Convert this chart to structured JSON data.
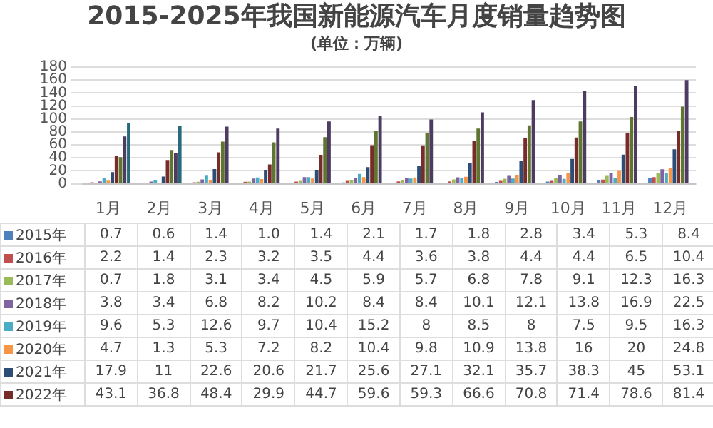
{
  "chart_data": {
    "type": "bar",
    "title": "2015-2025年我国新能源汽车月度销量趋势图",
    "subtitle": "(单位：万辆)",
    "categories": [
      "1月",
      "2月",
      "3月",
      "4月",
      "5月",
      "6月",
      "7月",
      "8月",
      "9月",
      "10月",
      "11月",
      "12月"
    ],
    "legend": "bottom",
    "ylim": [
      0,
      180
    ],
    "yticks": [
      0,
      20,
      40,
      60,
      80,
      100,
      120,
      140,
      160,
      180
    ],
    "grid": "y",
    "series": [
      {
        "name": "2015年",
        "color": "#4f81bd",
        "values": [
          0.7,
          0.6,
          1.4,
          1.0,
          1.4,
          2.1,
          1.7,
          1.8,
          2.8,
          3.4,
          5.3,
          8.4
        ],
        "value_labels": [
          "0.7",
          "0.6",
          "1.4",
          "1.0",
          "1.4",
          "2.1",
          "1.7",
          "1.8",
          "2.8",
          "3.4",
          "5.3",
          "8.4"
        ]
      },
      {
        "name": "2016年",
        "color": "#c0504d",
        "values": [
          2.2,
          1.4,
          2.3,
          3.2,
          3.5,
          4.4,
          3.6,
          3.8,
          4.4,
          4.4,
          6.5,
          10.4
        ],
        "value_labels": [
          "2.2",
          "1.4",
          "2.3",
          "3.2",
          "3.5",
          "4.4",
          "3.6",
          "3.8",
          "4.4",
          "4.4",
          "6.5",
          "10.4"
        ]
      },
      {
        "name": "2017年",
        "color": "#9bbb59",
        "values": [
          0.7,
          1.8,
          3.1,
          3.4,
          4.5,
          5.9,
          5.7,
          6.8,
          7.8,
          9.1,
          12.3,
          16.3
        ],
        "value_labels": [
          "0.7",
          "1.8",
          "3.1",
          "3.4",
          "4.5",
          "5.9",
          "5.7",
          "6.8",
          "7.8",
          "9.1",
          "12.3",
          "16.3"
        ]
      },
      {
        "name": "2018年",
        "color": "#8064a2",
        "values": [
          3.8,
          3.4,
          6.8,
          8.2,
          10.2,
          8.4,
          8.4,
          10.1,
          12.1,
          13.8,
          16.9,
          22.5
        ],
        "value_labels": [
          "3.8",
          "3.4",
          "6.8",
          "8.2",
          "10.2",
          "8.4",
          "8.4",
          "10.1",
          "12.1",
          "13.8",
          "16.9",
          "22.5"
        ]
      },
      {
        "name": "2019年",
        "color": "#4bacc6",
        "values": [
          9.6,
          5.3,
          12.6,
          9.7,
          10.4,
          15.2,
          8,
          8.5,
          8,
          7.5,
          9.5,
          16.3
        ],
        "value_labels": [
          "9.6",
          "5.3",
          "12.6",
          "9.7",
          "10.4",
          "15.2",
          "8",
          "8.5",
          "8",
          "7.5",
          "9.5",
          "16.3"
        ]
      },
      {
        "name": "2020年",
        "color": "#f79646",
        "values": [
          4.7,
          1.3,
          5.3,
          7.2,
          8.2,
          10.4,
          9.8,
          10.9,
          13.8,
          16,
          20,
          24.8
        ],
        "value_labels": [
          "4.7",
          "1.3",
          "5.3",
          "7.2",
          "8.2",
          "10.4",
          "9.8",
          "10.9",
          "13.8",
          "16",
          "20",
          "24.8"
        ]
      },
      {
        "name": "2021年",
        "color": "#2c4d75",
        "values": [
          17.9,
          11,
          22.6,
          20.6,
          21.7,
          25.6,
          27.1,
          32.1,
          35.7,
          38.3,
          45,
          53.1
        ],
        "value_labels": [
          "17.9",
          "11",
          "22.6",
          "20.6",
          "21.7",
          "25.6",
          "27.1",
          "32.1",
          "35.7",
          "38.3",
          "45",
          "53.1"
        ]
      },
      {
        "name": "2022年",
        "color": "#772c2a",
        "values": [
          43.1,
          36.8,
          48.4,
          29.9,
          44.7,
          59.6,
          59.3,
          66.6,
          70.8,
          71.4,
          78.6,
          81.4
        ],
        "value_labels": [
          "43.1",
          "36.8",
          "48.4",
          "29.9",
          "44.7",
          "59.6",
          "59.3",
          "66.6",
          "70.8",
          "71.4",
          "78.6",
          "81.4"
        ]
      },
      {
        "color": "#5f7530",
        "values": [
          41,
          52,
          65,
          64,
          72,
          81,
          78,
          85,
          90,
          96,
          103,
          119
        ]
      },
      {
        "color": "#4d3b62",
        "values": [
          73,
          48,
          88,
          85,
          96,
          105,
          99,
          110,
          129,
          143,
          151,
          160
        ]
      },
      {
        "color": "#276a7c",
        "values": [
          94,
          89,
          null,
          null,
          null,
          null,
          null,
          null,
          null,
          null,
          null,
          null
        ]
      }
    ]
  }
}
